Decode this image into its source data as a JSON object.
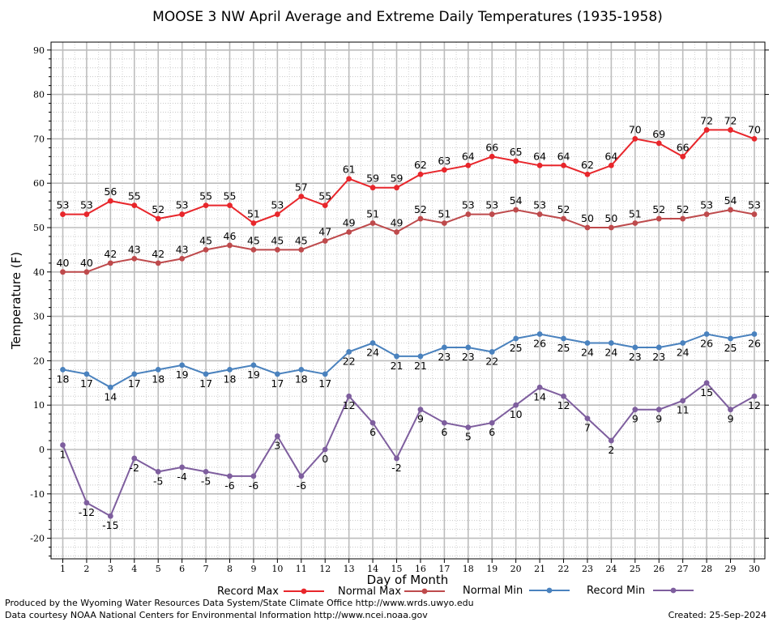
{
  "chart_data": {
    "type": "line",
    "title": "MOOSE 3 NW April Average and Extreme Daily Temperatures (1935-1958)",
    "xlabel": "Day of Month",
    "ylabel": "Temperature (F)",
    "ylim": [
      -25,
      92
    ],
    "y_ticks": [
      -20,
      -10,
      0,
      10,
      20,
      30,
      40,
      50,
      60,
      70,
      80,
      90
    ],
    "x_ticks": [
      1,
      2,
      3,
      4,
      5,
      6,
      7,
      8,
      9,
      10,
      11,
      12,
      13,
      14,
      15,
      16,
      17,
      18,
      19,
      20,
      21,
      22,
      23,
      24,
      25,
      26,
      27,
      28,
      29,
      30
    ],
    "grid": true,
    "legend_position": "bottom",
    "series": [
      {
        "name": "Record Max",
        "color": "#e8262b",
        "label_position": "above",
        "values": [
          53,
          53,
          56,
          55,
          52,
          53,
          55,
          55,
          51,
          53,
          57,
          55,
          61,
          59,
          59,
          62,
          63,
          64,
          66,
          65,
          64,
          64,
          62,
          64,
          70,
          69,
          66,
          72,
          72,
          70
        ]
      },
      {
        "name": "Normal Max",
        "color": "#be4a4c",
        "label_position": "above",
        "values": [
          40,
          40,
          42,
          43,
          42,
          43,
          45,
          46,
          45,
          45,
          45,
          47,
          49,
          51,
          49,
          52,
          51,
          53,
          53,
          54,
          53,
          52,
          50,
          50,
          51,
          52,
          52,
          53,
          54,
          53
        ]
      },
      {
        "name": "Normal Min",
        "color": "#4a82be",
        "label_position": "below",
        "values": [
          18,
          17,
          14,
          17,
          18,
          19,
          17,
          18,
          19,
          17,
          18,
          17,
          22,
          24,
          21,
          21,
          23,
          23,
          22,
          25,
          26,
          25,
          24,
          24,
          23,
          23,
          24,
          26,
          25,
          26
        ]
      },
      {
        "name": "Record Min",
        "color": "#7e5e9e",
        "label_position": "below",
        "values": [
          1,
          -12,
          -15,
          -2,
          -5,
          -4,
          -5,
          -6,
          -6,
          3,
          -6,
          0,
          12,
          6,
          -2,
          9,
          6,
          5,
          6,
          10,
          14,
          12,
          7,
          2,
          9,
          9,
          11,
          15,
          9,
          12
        ]
      }
    ]
  },
  "footer": {
    "produced_by": "Produced by the Wyoming Water Resources Data System/State Climate Office http://www.wrds.uwyo.edu",
    "data_courtesy": "Data courtesy NOAA National Centers for Environmental Information http://www.ncei.noaa.gov",
    "created": "Created:  25-Sep-2024"
  }
}
